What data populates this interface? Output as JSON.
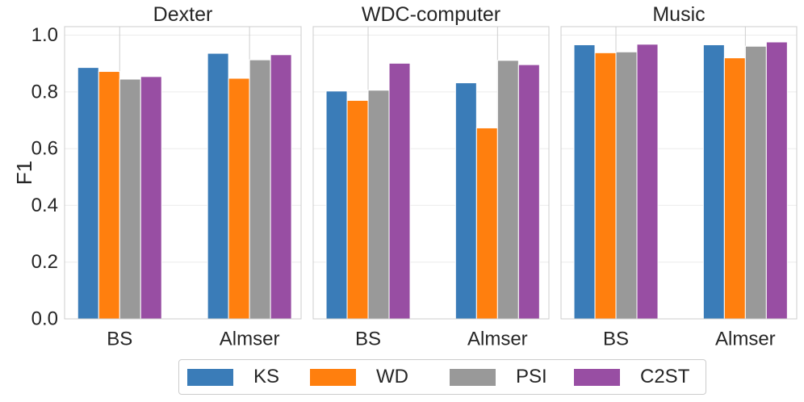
{
  "chart_data": {
    "type": "bar",
    "ylabel": "F1",
    "ylim": [
      0,
      1.03
    ],
    "yticks": [
      "0.0",
      "0.2",
      "0.4",
      "0.6",
      "0.8",
      "1.0"
    ],
    "ytick_values": [
      0,
      0.2,
      0.4,
      0.6,
      0.8,
      1.0
    ],
    "grid": true,
    "legend_position": "bottom-center",
    "series_names": [
      "KS",
      "WD",
      "PSI",
      "C2ST"
    ],
    "colors": [
      "#3a7cb8",
      "#ff7f0e",
      "#999999",
      "#984ea3"
    ],
    "panels": [
      {
        "title": "Dexter",
        "categories": [
          "BS",
          "Almser"
        ],
        "series": [
          {
            "name": "KS",
            "values": [
              0.886,
              0.936
            ]
          },
          {
            "name": "WD",
            "values": [
              0.872,
              0.848
            ]
          },
          {
            "name": "PSI",
            "values": [
              0.845,
              0.913
            ]
          },
          {
            "name": "C2ST",
            "values": [
              0.854,
              0.931
            ]
          }
        ]
      },
      {
        "title": "WDC-computer",
        "categories": [
          "BS",
          "Almser"
        ],
        "series": [
          {
            "name": "KS",
            "values": [
              0.803,
              0.832
            ]
          },
          {
            "name": "WD",
            "values": [
              0.77,
              0.673
            ]
          },
          {
            "name": "PSI",
            "values": [
              0.806,
              0.911
            ]
          },
          {
            "name": "C2ST",
            "values": [
              0.901,
              0.896
            ]
          }
        ]
      },
      {
        "title": "Music",
        "categories": [
          "BS",
          "Almser"
        ],
        "series": [
          {
            "name": "KS",
            "values": [
              0.966,
              0.966
            ]
          },
          {
            "name": "WD",
            "values": [
              0.938,
              0.92
            ]
          },
          {
            "name": "PSI",
            "values": [
              0.941,
              0.961
            ]
          },
          {
            "name": "C2ST",
            "values": [
              0.968,
              0.976
            ]
          }
        ]
      }
    ]
  }
}
